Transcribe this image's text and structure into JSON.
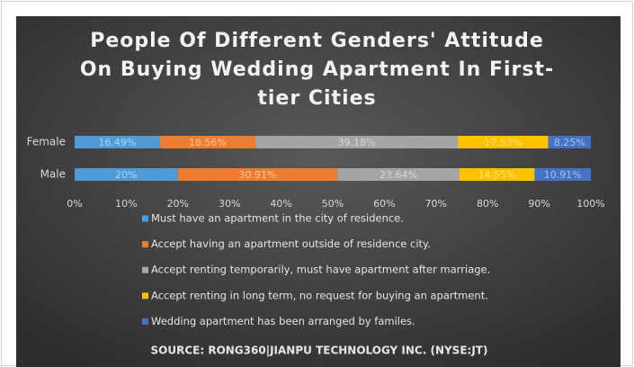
{
  "chart_data": {
    "type": "stacked_barh",
    "title": "People Of Different Genders' Attitude On Buying Wedding Apartment In First-tier Cities",
    "source": "SOURCE: RONG360|JIANPU TECHNOLOGY INC. (NYSE:JT)",
    "categories": [
      "Female",
      "Male"
    ],
    "series": [
      {
        "name": "Must have an apartment in the city of residence.",
        "color": "#4e9bd8",
        "values": [
          16.49,
          20
        ],
        "value_labels": [
          "16.49%",
          "20%"
        ]
      },
      {
        "name": "Accept having an apartment outside of residence city.",
        "color": "#ed7d31",
        "values": [
          18.56,
          30.91
        ],
        "value_labels": [
          "18.56%",
          "30.91%"
        ]
      },
      {
        "name": "Accept renting temporarily,  must have apartment after marriage.",
        "color": "#a5a5a5",
        "values": [
          39.18,
          23.64
        ],
        "value_labels": [
          "39.18%",
          "23.64%"
        ]
      },
      {
        "name": "Accept renting in long term, no request for buying an apartment.",
        "color": "#ffc000",
        "values": [
          17.53,
          14.55
        ],
        "value_labels": [
          "17.53%",
          "14.55%"
        ]
      },
      {
        "name": "Wedding apartment has been arranged by familes.",
        "color": "#4472c4",
        "values": [
          8.25,
          10.91
        ],
        "value_labels": [
          "8.25%",
          "10.91%"
        ]
      }
    ],
    "xlim": [
      0,
      100
    ],
    "xticks": [
      {
        "value": 0,
        "label": "0%"
      },
      {
        "value": 10,
        "label": "10%"
      },
      {
        "value": 20,
        "label": "20%"
      },
      {
        "value": 30,
        "label": "30%"
      },
      {
        "value": 40,
        "label": "40%"
      },
      {
        "value": 50,
        "label": "50%"
      },
      {
        "value": 60,
        "label": "60%"
      },
      {
        "value": 70,
        "label": "70%"
      },
      {
        "value": 80,
        "label": "80%"
      },
      {
        "value": 90,
        "label": "90%"
      },
      {
        "value": 100,
        "label": "100%"
      }
    ],
    "legend": "bottom"
  }
}
